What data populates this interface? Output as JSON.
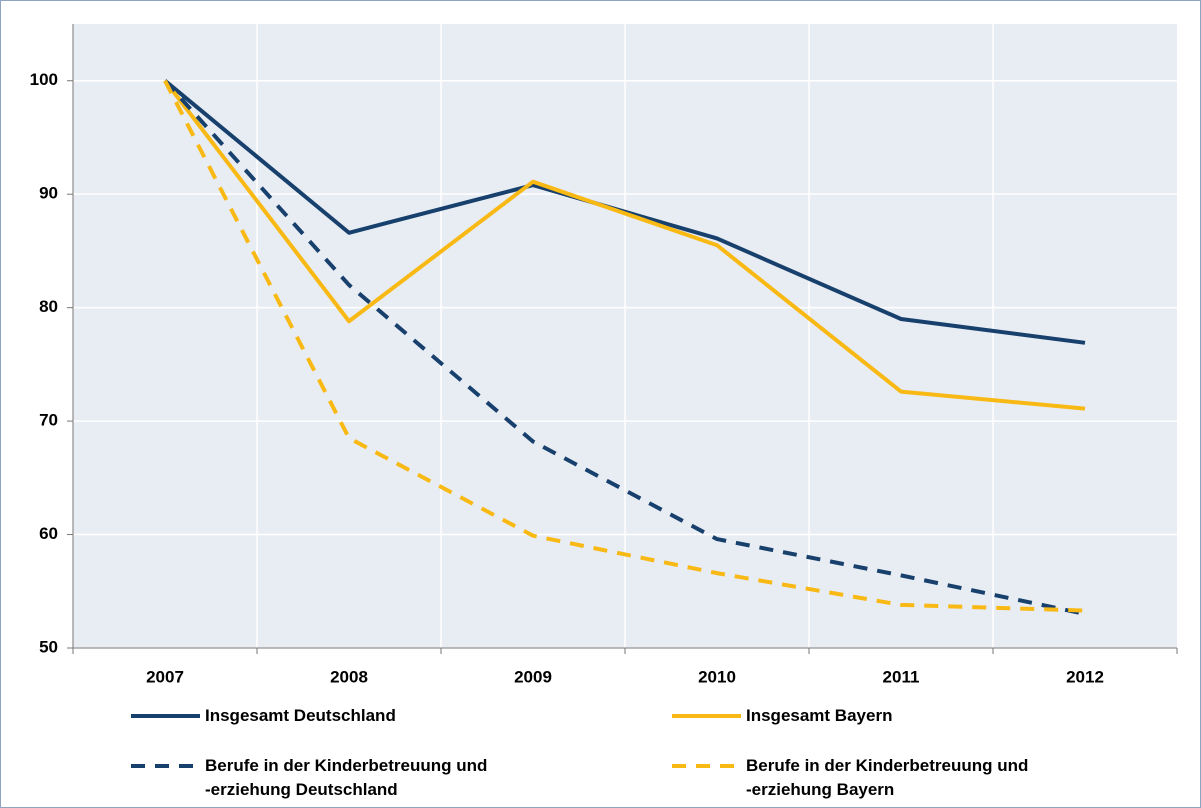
{
  "chart_data": {
    "type": "line",
    "categories": [
      "2007",
      "2008",
      "2009",
      "2010",
      "2011",
      "2012"
    ],
    "series": [
      {
        "name": "Insgesamt Deutschland",
        "color": "#17406d",
        "dashed": false,
        "values": [
          100,
          86.6,
          90.8,
          86.1,
          79.0,
          76.9
        ]
      },
      {
        "name": "Insgesamt Bayern",
        "color": "#f9b914",
        "dashed": false,
        "values": [
          100,
          78.8,
          91.1,
          85.5,
          72.6,
          71.1
        ]
      },
      {
        "name": "Berufe in der Kinderbetreuung und -erziehung Deutschland",
        "color": "#17406d",
        "dashed": true,
        "values": [
          100,
          82.0,
          68.2,
          59.6,
          56.4,
          53.0
        ]
      },
      {
        "name": "Berufe in der Kinderbetreuung und -erziehung Bayern",
        "color": "#f9b914",
        "dashed": true,
        "values": [
          100,
          68.5,
          59.9,
          56.6,
          53.8,
          53.3
        ]
      }
    ],
    "ylim": [
      50,
      105
    ],
    "yticks": [
      50,
      60,
      70,
      80,
      90,
      100
    ],
    "grid": true
  }
}
